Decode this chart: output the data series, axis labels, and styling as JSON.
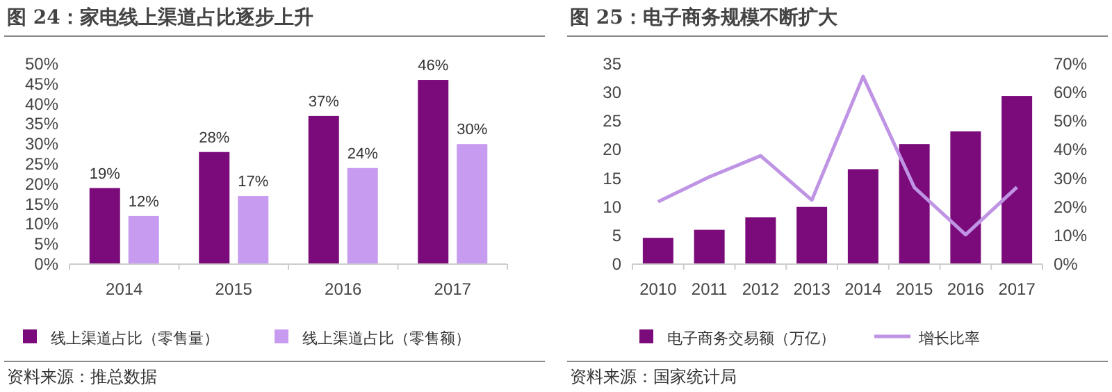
{
  "chart_data": [
    {
      "type": "bar",
      "title": "图 24：家电线上渠道占比逐步上升",
      "categories": [
        "2014",
        "2015",
        "2016",
        "2017"
      ],
      "series": [
        {
          "name": "线上渠道占比（零售量）",
          "color": "#7b0a7b",
          "values": [
            19,
            28,
            37,
            46
          ],
          "value_labels": [
            "19%",
            "28%",
            "37%",
            "46%"
          ]
        },
        {
          "name": "线上渠道占比（零售额）",
          "color": "#c79cf0",
          "values": [
            12,
            17,
            24,
            30
          ],
          "value_labels": [
            "12%",
            "17%",
            "24%",
            "30%"
          ]
        }
      ],
      "ylim": [
        0,
        50
      ],
      "yticks": [
        {
          "value": 0,
          "label": "0%"
        },
        {
          "value": 5,
          "label": "5%"
        },
        {
          "value": 10,
          "label": "10%"
        },
        {
          "value": 15,
          "label": "15%"
        },
        {
          "value": 20,
          "label": "20%"
        },
        {
          "value": 25,
          "label": "25%"
        },
        {
          "value": 30,
          "label": "30%"
        },
        {
          "value": 35,
          "label": "35%"
        },
        {
          "value": 40,
          "label": "40%"
        },
        {
          "value": 45,
          "label": "45%"
        },
        {
          "value": 50,
          "label": "50%"
        }
      ],
      "legend": "bottom",
      "grid": false,
      "annotations": [
        "资料来源：推总数据"
      ]
    },
    {
      "type": "bar",
      "title": "图 25：电子商务规模不断扩大",
      "categories": [
        "2010",
        "2011",
        "2012",
        "2013",
        "2014",
        "2015",
        "2016",
        "2017"
      ],
      "series": [
        {
          "name": "电子商务交易额（万亿）",
          "color": "#7b0a7b",
          "values": [
            4.6,
            6.0,
            8.2,
            10.0,
            16.6,
            21.0,
            23.2,
            29.4
          ]
        },
        {
          "name": "增长比率",
          "type": "line",
          "axis": "y2",
          "color": "#bf94e4",
          "values": [
            21.8,
            30.5,
            37.9,
            22.4,
            65.6,
            26.8,
            10.3,
            26.9
          ]
        }
      ],
      "ylim": [
        0,
        35
      ],
      "yticks": [
        0,
        5,
        10,
        15,
        20,
        25,
        30,
        35
      ],
      "y2lim": [
        0,
        70
      ],
      "y2ticks": [
        {
          "value": 0,
          "label": "0%"
        },
        {
          "value": 10,
          "label": "10%"
        },
        {
          "value": 20,
          "label": "20%"
        },
        {
          "value": 30,
          "label": "30%"
        },
        {
          "value": 40,
          "label": "40%"
        },
        {
          "value": 50,
          "label": "50%"
        },
        {
          "value": 60,
          "label": "60%"
        },
        {
          "value": 70,
          "label": "70%"
        }
      ],
      "legend": "bottom",
      "grid": false,
      "annotations": [
        "资料来源：国家统计局"
      ]
    }
  ]
}
